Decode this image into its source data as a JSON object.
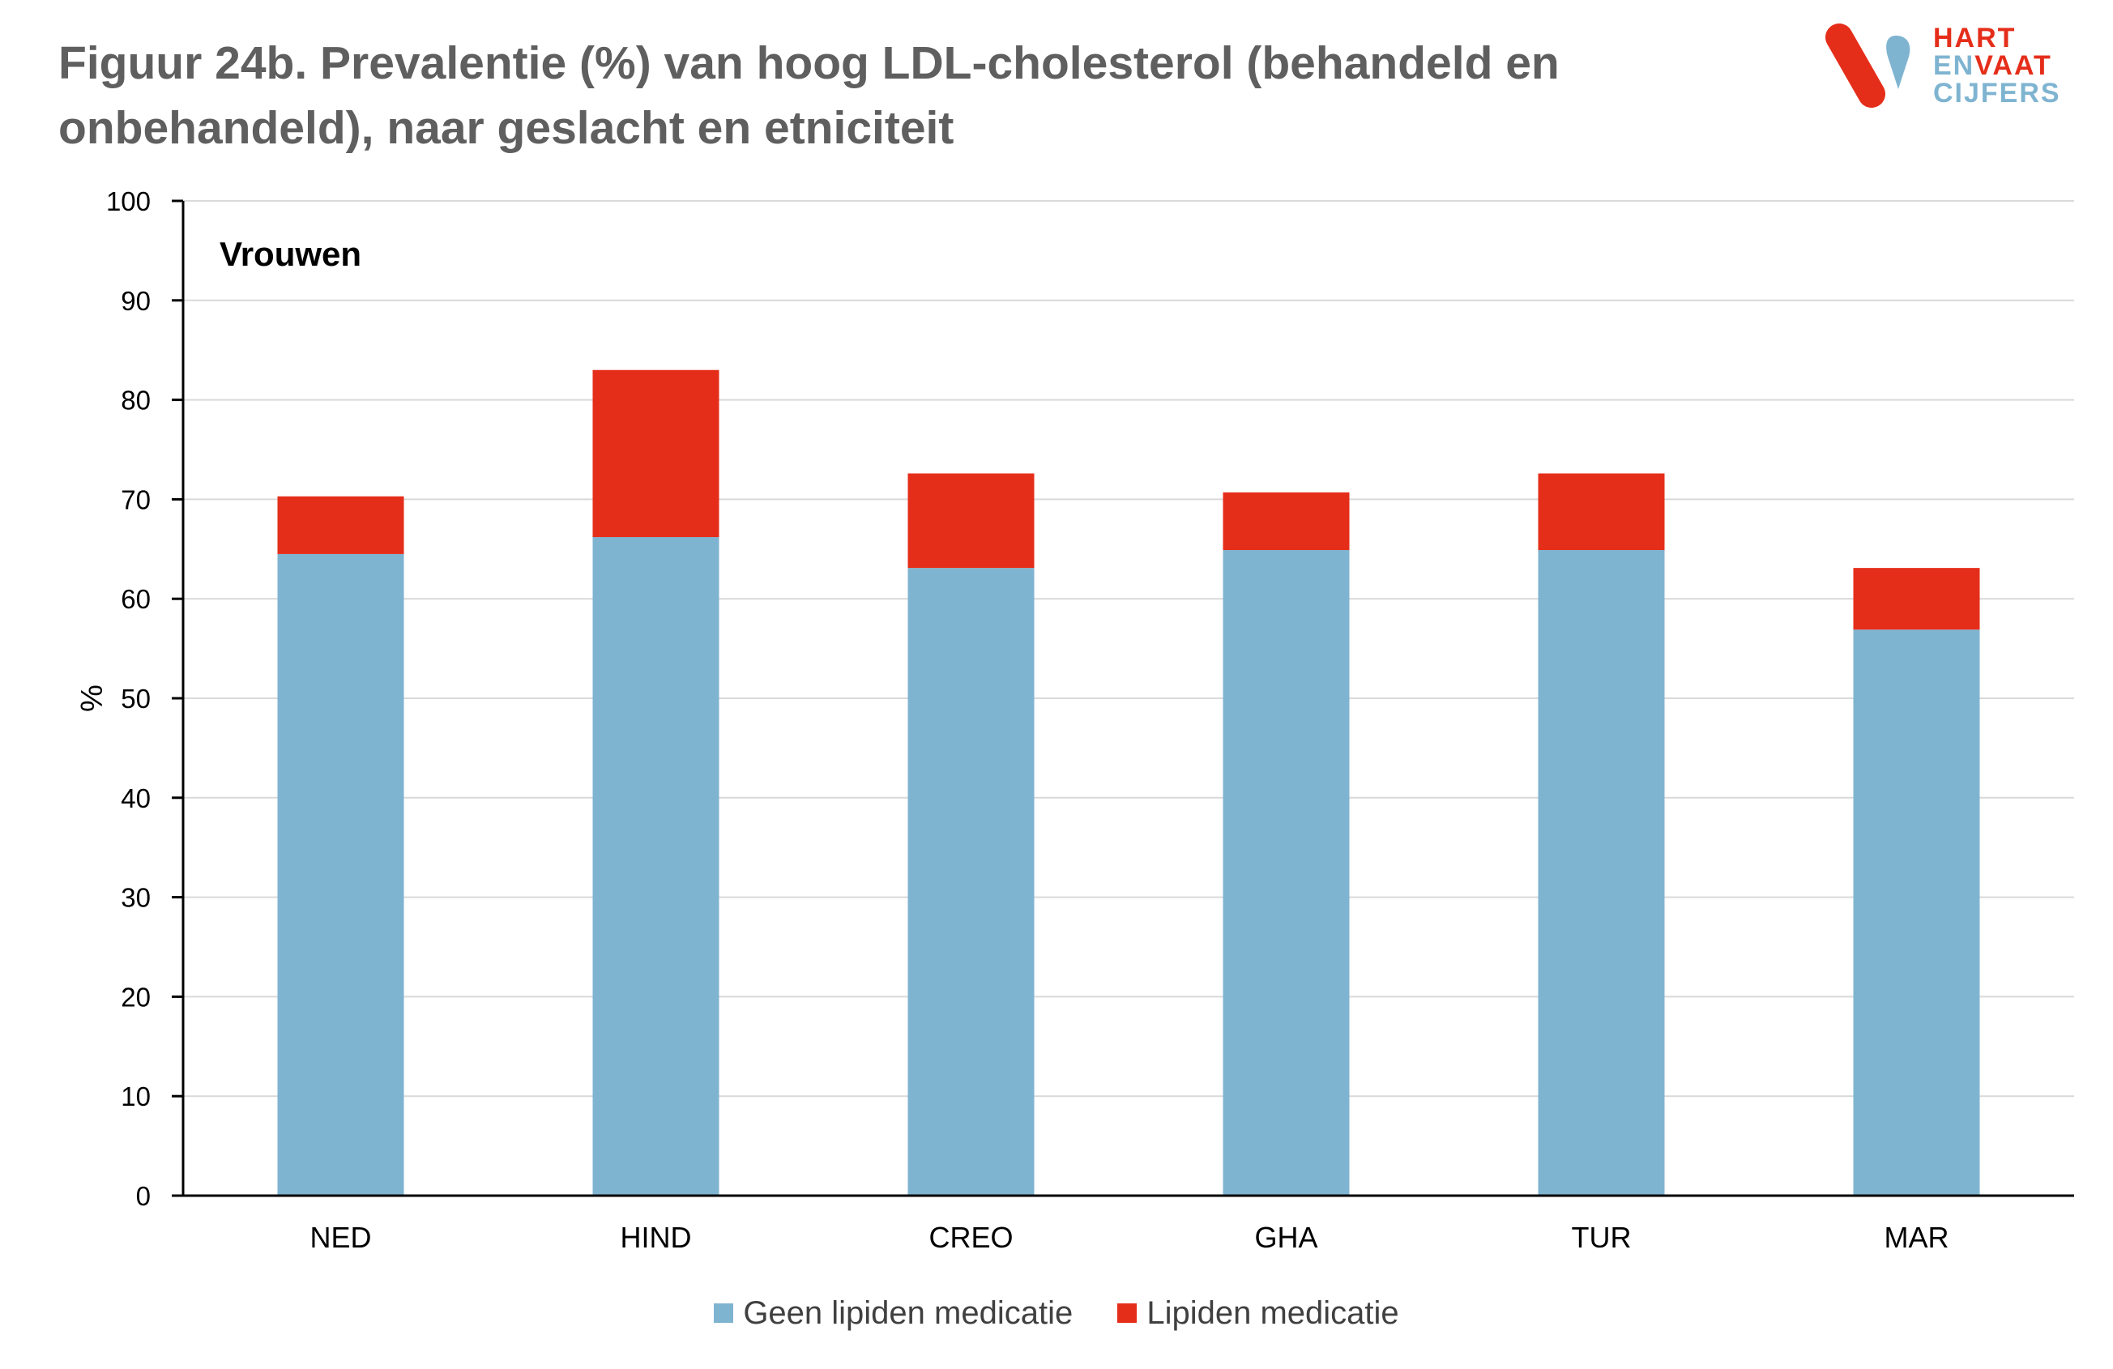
{
  "title": "Figuur 24b. Prevalentie (%) van hoog LDL-cholesterol (behandeld en onbehandeld), naar geslacht en etniciteit",
  "logo": {
    "line1": "HART",
    "line2a": "EN",
    "line2b": "VAAT",
    "line3": "CIJFERS",
    "colors": {
      "red": "#e52e1a",
      "blue": "#7fb4d1"
    }
  },
  "colors": {
    "geen": "#7fb4d1",
    "lipiden": "#e52e1a",
    "grid": "#d9d9d9",
    "axis": "#000000"
  },
  "chart_data": {
    "type": "bar",
    "stacked": true,
    "panel_label": "Vrouwen",
    "title": "Figuur 24b. Prevalentie (%) van hoog LDL-cholesterol (behandeld en onbehandeld), naar geslacht en etniciteit",
    "xlabel": "",
    "ylabel": "%",
    "ylim": [
      0,
      100
    ],
    "yticks": [
      0,
      10,
      20,
      30,
      40,
      50,
      60,
      70,
      80,
      90,
      100
    ],
    "grid": true,
    "legend_position": "bottom",
    "categories": [
      "NED",
      "HIND",
      "CREO",
      "GHA",
      "TUR",
      "MAR"
    ],
    "series": [
      {
        "name": "Geen lipiden medicatie",
        "color": "#7fb4d1",
        "values": [
          64.5,
          66.2,
          63.1,
          64.9,
          64.9,
          56.9
        ]
      },
      {
        "name": "Lipiden medicatie",
        "color": "#e52e1a",
        "values": [
          5.8,
          16.8,
          9.5,
          5.8,
          7.7,
          6.2
        ]
      }
    ]
  }
}
